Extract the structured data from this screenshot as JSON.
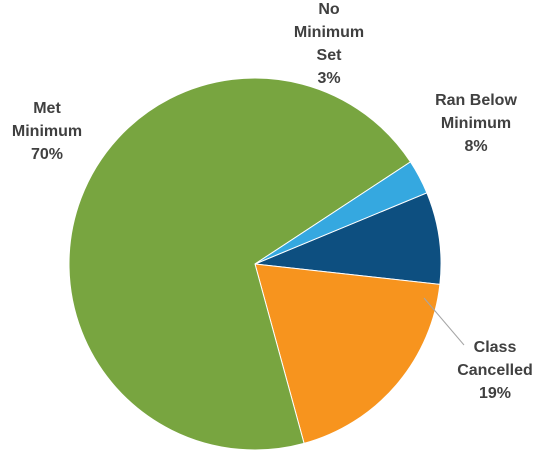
{
  "chart_data": {
    "type": "pie",
    "title": "",
    "slices": [
      {
        "category": "Ran Below Minimum",
        "label_lines": [
          "Ran Below",
          "Minimum"
        ],
        "value_label": "8%",
        "value": 8,
        "color": "#0d4f80"
      },
      {
        "category": "Class Cancelled",
        "label_lines": [
          "Class",
          "Cancelled"
        ],
        "value_label": "19%",
        "value": 19,
        "color": "#f7941e"
      },
      {
        "category": "Met Minimum",
        "label_lines": [
          "Met",
          "Minimum"
        ],
        "value_label": "70%",
        "value": 70,
        "color": "#78a540"
      },
      {
        "category": "No Minimum Set",
        "label_lines": [
          "No",
          "Minimum",
          "Set"
        ],
        "value_label": "3%",
        "value": 3,
        "color": "#35a8e0"
      }
    ],
    "start_angle_deg": 67.5,
    "direction": "clockwise",
    "legend": "none"
  }
}
